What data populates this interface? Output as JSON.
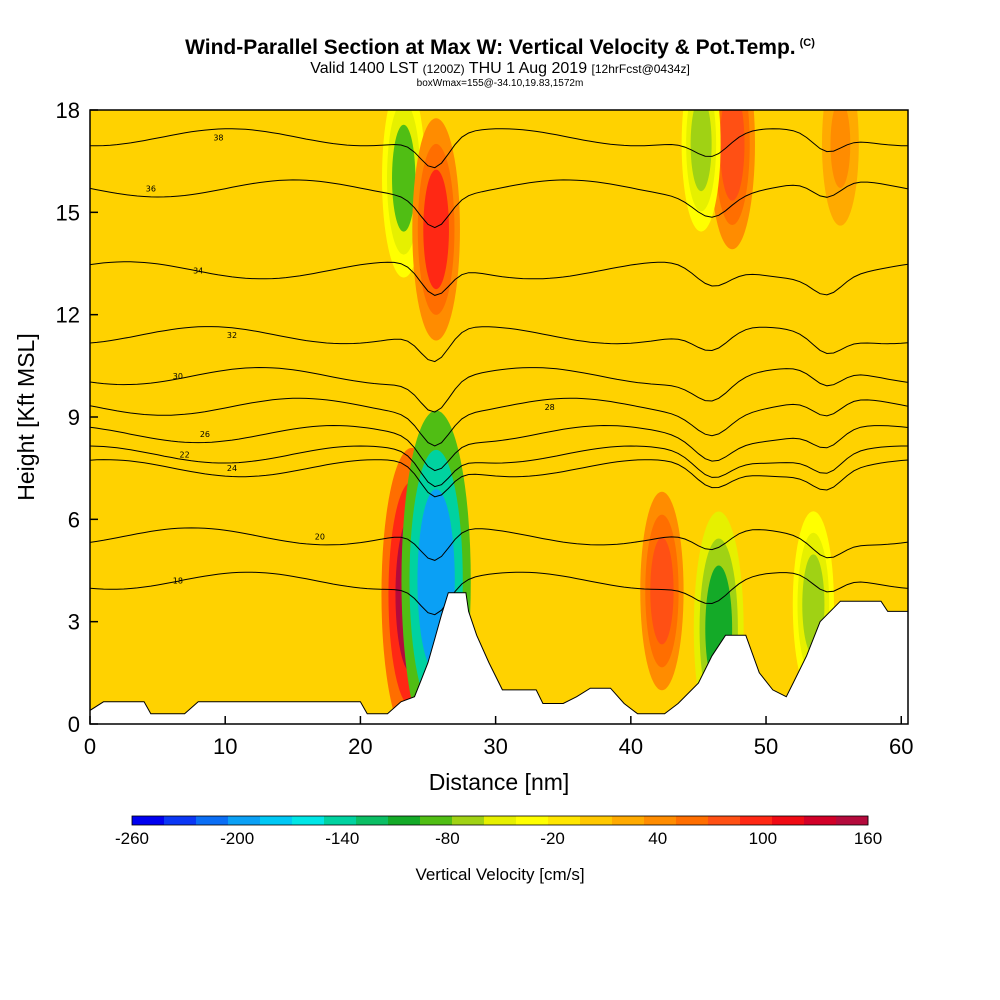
{
  "header": {
    "title": "Wind-Parallel Section at Max W: Vertical Velocity & Pot.Temp.",
    "title_mark": "(C)",
    "valid_prefix": "Valid 1400 LST",
    "valid_utc": "(1200Z)",
    "valid_date": "THU 1 Aug 2019",
    "forecast": "[12hrFcst@0434z]",
    "box_info": "boxWmax=155@-34.10,19.83,1572m"
  },
  "colorbar": {
    "title": "Vertical Velocity [cm/s]",
    "tick_labels": [
      "-260",
      "-200",
      "-140",
      "-80",
      "-20",
      "40",
      "100",
      "160"
    ],
    "colors": [
      "#0000f0",
      "#0a37f5",
      "#0a6ef5",
      "#0aa0f5",
      "#00c8f5",
      "#00e6e6",
      "#00d2a0",
      "#0abe64",
      "#14aa28",
      "#50be14",
      "#a0d214",
      "#e6f000",
      "#ffff00",
      "#ffe600",
      "#ffc800",
      "#ffaa00",
      "#ff8c00",
      "#ff6e00",
      "#ff5014",
      "#ff2814",
      "#f00a14",
      "#d20028",
      "#b40a3c"
    ]
  },
  "chart_data": {
    "type": "heatmap",
    "title": "Wind-Parallel Section at Max W: Vertical Velocity & Pot.Temp.",
    "xlabel": "Distance [nm]",
    "ylabel": "Height [Kft MSL]",
    "xlim": [
      0,
      60.5
    ],
    "ylim": [
      0,
      18
    ],
    "x_ticks": [
      0,
      10,
      20,
      30,
      40,
      50,
      60
    ],
    "y_ticks": [
      0,
      3,
      6,
      9,
      12,
      15,
      18
    ],
    "background_value_cm_s": 10,
    "w_features": [
      {
        "label": "updraft-core",
        "x": 23.8,
        "y": 3.8,
        "w": 160
      },
      {
        "label": "downdraft-core",
        "x": 25.6,
        "y": 4.2,
        "w": -200
      },
      {
        "label": "downdraft-upper",
        "x": 23.2,
        "y": 16.0,
        "w": -80
      },
      {
        "label": "updraft-upper",
        "x": 25.6,
        "y": 14.5,
        "w": 100
      },
      {
        "label": "downdraft-mid",
        "x": 46.5,
        "y": 2.8,
        "w": -110
      },
      {
        "label": "updraft-mid",
        "x": 42.3,
        "y": 3.9,
        "w": 80
      },
      {
        "label": "updraft-top",
        "x": 47.5,
        "y": 17.0,
        "w": 90
      },
      {
        "label": "downdraft-top",
        "x": 45.2,
        "y": 17.0,
        "w": -60
      },
      {
        "label": "updraft-east",
        "x": 55.5,
        "y": 17.0,
        "w": 50
      },
      {
        "label": "downdraft-east",
        "x": 53.5,
        "y": 3.5,
        "w": -70
      }
    ],
    "theta_contours": [
      {
        "value": "18",
        "base_height": 4.2,
        "label_x": 6.5
      },
      {
        "value": "20",
        "base_height": 5.5,
        "label_x": 17.0
      },
      {
        "value": "22",
        "base_height": 7.9,
        "label_x": 7.0
      },
      {
        "value": "24",
        "base_height": 7.5,
        "label_x": 10.5
      },
      {
        "value": "26",
        "base_height": 8.5,
        "label_x": 8.5
      },
      {
        "value": "28",
        "base_height": 9.3,
        "label_x": 34.0
      },
      {
        "value": "30",
        "base_height": 10.2,
        "label_x": 6.5
      },
      {
        "value": "32",
        "base_height": 11.4,
        "label_x": 10.5
      },
      {
        "value": "34",
        "base_height": 13.3,
        "label_x": 8.0
      },
      {
        "value": "36",
        "base_height": 15.7,
        "label_x": 4.5
      },
      {
        "value": "38",
        "base_height": 17.2,
        "label_x": 9.5
      }
    ],
    "terrain": [
      [
        0,
        0.4
      ],
      [
        1,
        0.65
      ],
      [
        4,
        0.65
      ],
      [
        4.5,
        0.3
      ],
      [
        7,
        0.3
      ],
      [
        8,
        0.65
      ],
      [
        10,
        0.65
      ],
      [
        14,
        0.65
      ],
      [
        20,
        0.65
      ],
      [
        20.5,
        0.3
      ],
      [
        22,
        0.3
      ],
      [
        23,
        0.65
      ],
      [
        24,
        0.8
      ],
      [
        24.5,
        1.3
      ],
      [
        25,
        1.8
      ],
      [
        25.5,
        2.5
      ],
      [
        26,
        3.2
      ],
      [
        26.5,
        3.85
      ],
      [
        27.8,
        3.85
      ],
      [
        28,
        3.3
      ],
      [
        28.6,
        2.6
      ],
      [
        29.5,
        1.8
      ],
      [
        30.5,
        1.0
      ],
      [
        33,
        1.0
      ],
      [
        33.5,
        0.6
      ],
      [
        35,
        0.6
      ],
      [
        36,
        0.8
      ],
      [
        37,
        1.05
      ],
      [
        38.5,
        1.05
      ],
      [
        39.5,
        0.6
      ],
      [
        40.5,
        0.3
      ],
      [
        42.5,
        0.3
      ],
      [
        43.5,
        0.6
      ],
      [
        45,
        1.2
      ],
      [
        46,
        2.0
      ],
      [
        47,
        2.6
      ],
      [
        48.5,
        2.6
      ],
      [
        49.5,
        1.5
      ],
      [
        50.5,
        1.0
      ],
      [
        51.5,
        0.8
      ],
      [
        52,
        1.2
      ],
      [
        53,
        2.0
      ],
      [
        54,
        3.0
      ],
      [
        55.5,
        3.6
      ],
      [
        58.5,
        3.6
      ],
      [
        59,
        3.3
      ],
      [
        60.5,
        3.3
      ]
    ]
  }
}
